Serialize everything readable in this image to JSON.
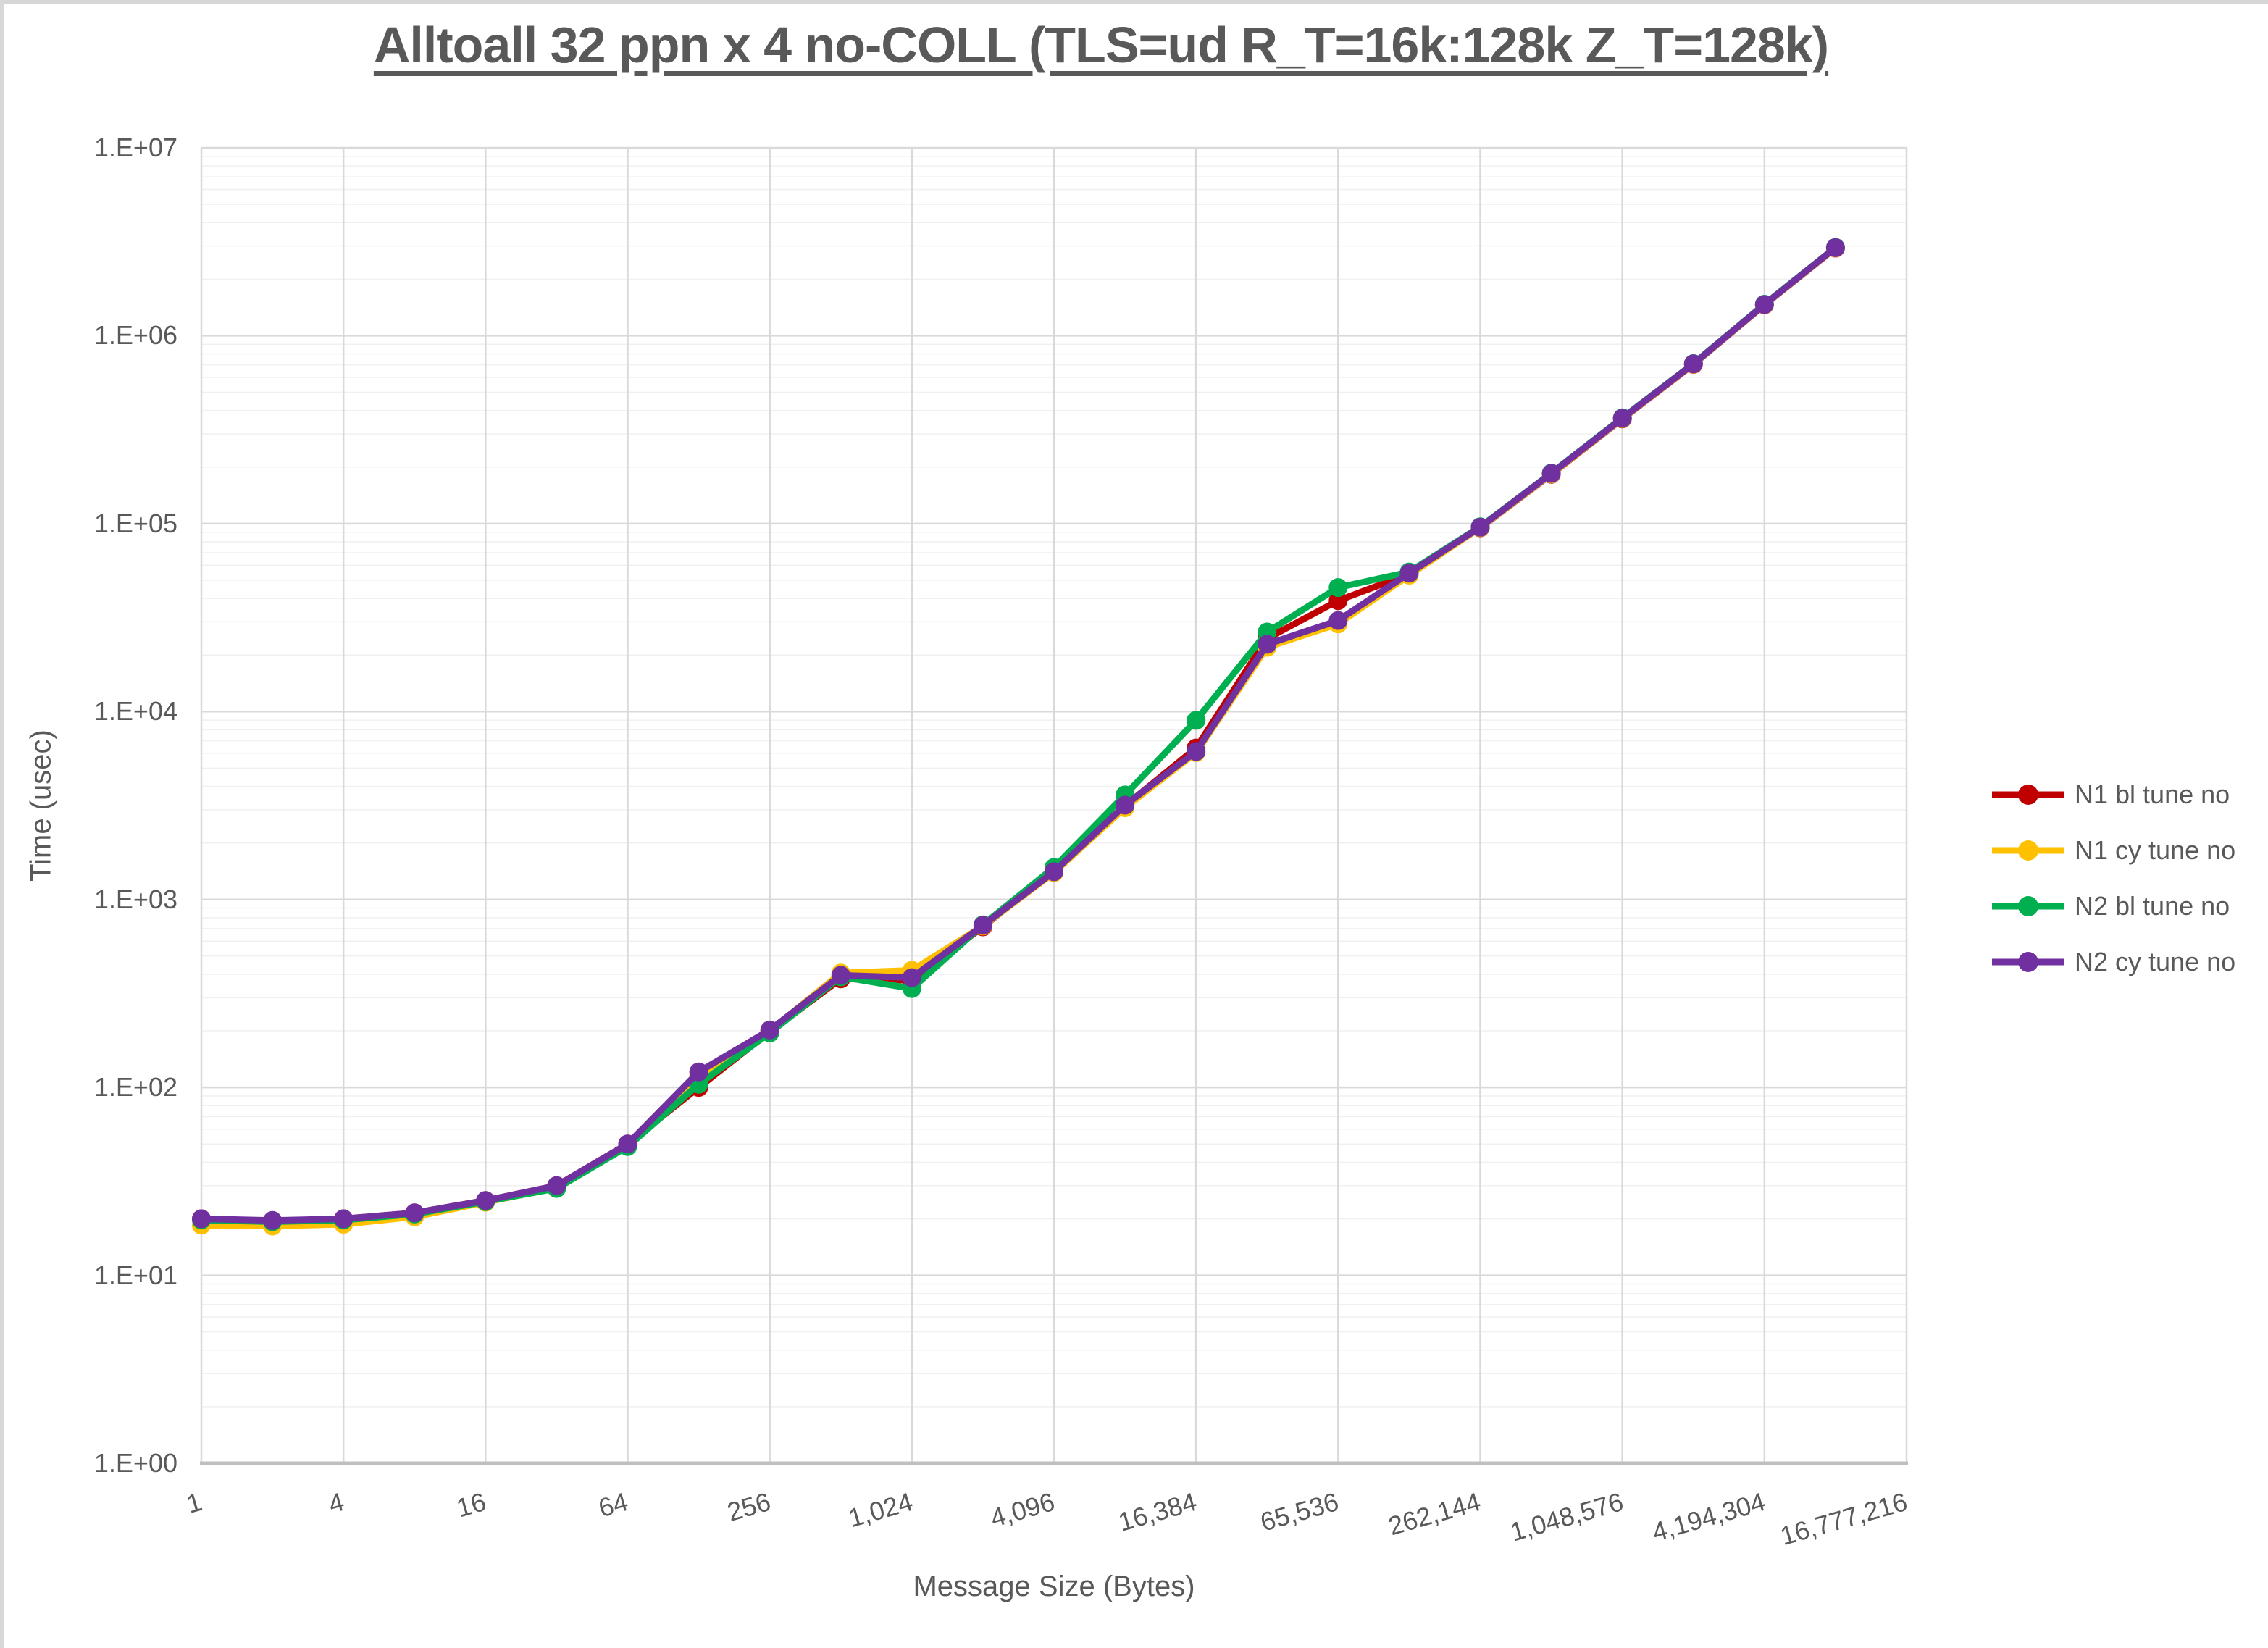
{
  "chart_data": {
    "type": "line",
    "title": "Alltoall 32 ppn x 4 no-COLL (TLS=ud R_T=16k:128k Z_T=128k)",
    "xlabel": "Message Size (Bytes)",
    "ylabel": "Time (usec)",
    "x_scale": "log2",
    "y_scale": "log10",
    "xlim": [
      1,
      16777216
    ],
    "ylim": [
      1,
      10000000
    ],
    "grid": {
      "major": true,
      "minor_horizontal": true
    },
    "legend_position": "right",
    "x_ticks": {
      "values": [
        1,
        4,
        16,
        64,
        256,
        1024,
        4096,
        16384,
        65536,
        262144,
        1048576,
        4194304,
        16777216
      ],
      "labels": [
        "1",
        "4",
        "16",
        "64",
        "256",
        "1,024",
        "4,096",
        "16,384",
        "65,536",
        "262,144",
        "1,048,576",
        "4,194,304",
        "16,777,216"
      ]
    },
    "y_ticks": {
      "values": [
        1,
        10,
        100,
        1000,
        10000,
        100000,
        1000000,
        10000000
      ],
      "labels": [
        "1.E+00",
        "1.E+01",
        "1.E+02",
        "1.E+03",
        "1.E+04",
        "1.E+05",
        "1.E+06",
        "1.E+07"
      ]
    },
    "x": [
      1,
      2,
      4,
      8,
      16,
      32,
      64,
      128,
      256,
      512,
      1024,
      2048,
      4096,
      8192,
      16384,
      32768,
      65536,
      131072,
      262144,
      524288,
      1048576,
      2097152,
      4194304,
      8388608
    ],
    "series": [
      {
        "name": "N1 bl tune no",
        "color": "#C00000",
        "values": [
          20,
          19.5,
          20,
          21.5,
          25,
          30,
          50,
          100,
          198,
          378,
          372,
          715,
          1430,
          3150,
          6400,
          24500,
          38900,
          54000,
          95000,
          183000,
          361000,
          704000,
          1458000,
          2925000
        ]
      },
      {
        "name": "N1 cy tune no",
        "color": "#FFC000",
        "values": [
          18.5,
          18.3,
          18.7,
          20.5,
          24.5,
          29.3,
          49,
          116,
          200,
          406,
          420,
          722,
          1390,
          3080,
          6050,
          22000,
          29300,
          53200,
          95300,
          183800,
          362200,
          705600,
          1461000,
          2931000
        ]
      },
      {
        "name": "N2 bl tune no",
        "color": "#00B050",
        "values": [
          19.7,
          19.3,
          19.7,
          21.2,
          24.7,
          29,
          48.5,
          104,
          195,
          388,
          336,
          733,
          1480,
          3600,
          8980,
          26500,
          45700,
          55300,
          96200,
          185800,
          365500,
          710200,
          1470000,
          2948000
        ]
      },
      {
        "name": "N2 cy tune no",
        "color": "#7030A0",
        "values": [
          20,
          19.6,
          20,
          21.5,
          25,
          30,
          50,
          121,
          202,
          395,
          384,
          728,
          1405,
          3175,
          6130,
          22800,
          30500,
          54500,
          95800,
          185000,
          364000,
          708000,
          1465000,
          2940000
        ]
      }
    ]
  },
  "styles": {
    "text_color": "#595959",
    "grid_major": "#D9D9D9",
    "grid_minor": "#F0F0F0",
    "axis_line": "#BFBFBF",
    "background": "#FFFFFF",
    "window_edge": "#D6D6D6"
  }
}
